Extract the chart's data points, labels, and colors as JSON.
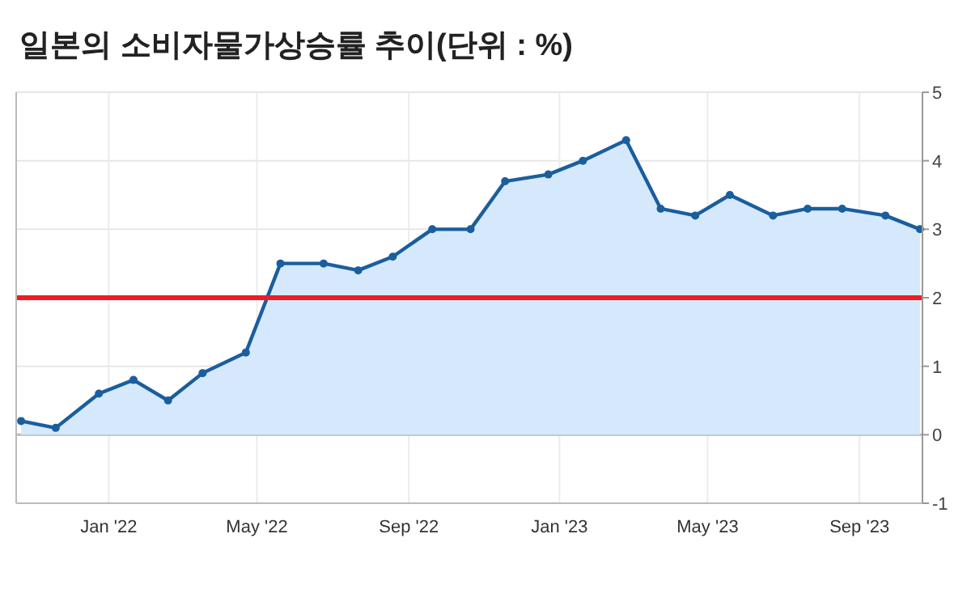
{
  "chart_data": {
    "type": "area",
    "title": "일본의 소비자물가상승률 추이(단위 : %)",
    "x": [
      "2021-10-22",
      "2021-11-19",
      "2021-12-24",
      "2022-01-21",
      "2022-02-18",
      "2022-03-18",
      "2022-04-22",
      "2022-05-20",
      "2022-06-24",
      "2022-07-22",
      "2022-08-19",
      "2022-09-20",
      "2022-10-21",
      "2022-11-18",
      "2022-12-23",
      "2023-01-20",
      "2023-02-24",
      "2023-03-24",
      "2023-04-21",
      "2023-05-19",
      "2023-06-23",
      "2023-07-21",
      "2023-08-18",
      "2023-09-22",
      "2023-10-20"
    ],
    "series": [
      {
        "color": "#1a5e9e",
        "values": [
          0.2,
          0.1,
          0.6,
          0.8,
          0.5,
          0.9,
          1.2,
          2.5,
          2.5,
          2.4,
          2.6,
          3.0,
          3.0,
          3.7,
          3.8,
          4.0,
          4.3,
          3.3,
          3.2,
          3.5,
          3.2,
          3.3,
          3.3,
          3.2,
          3.0
        ]
      }
    ],
    "xlim": [
      "2021-10-18",
      "2023-10-22"
    ],
    "xticks": [
      {
        "value": "2022-01-01",
        "label": "Jan '22"
      },
      {
        "value": "2022-05-01",
        "label": "May '22"
      },
      {
        "value": "2022-09-01",
        "label": "Sep '22"
      },
      {
        "value": "2023-01-01",
        "label": "Jan '23"
      },
      {
        "value": "2023-05-01",
        "label": "May '23"
      },
      {
        "value": "2023-09-01",
        "label": "Sep '23"
      }
    ],
    "ylim": [
      -1,
      5
    ],
    "yticks": [
      -1,
      0,
      1,
      2,
      3,
      4,
      5
    ],
    "ref_lines": [
      {
        "axis": "y",
        "value": 2,
        "color": "#ee1c25"
      }
    ],
    "grid": true,
    "marker": "circle",
    "line_style": "solid"
  }
}
